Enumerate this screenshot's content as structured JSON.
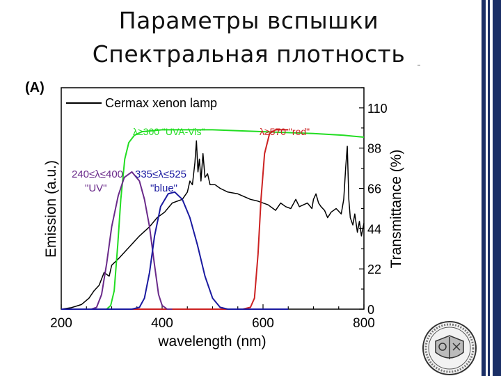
{
  "slide": {
    "title_line1": "Параметры вспышки",
    "title_line2": "Спектральная плотность"
  },
  "colors": {
    "lamp": "#000000",
    "uvavis": "#22dd22",
    "red": "#cc2222",
    "uv": "#6a2a8a",
    "blue": "#1a1aa0",
    "edge": "#1b2f66"
  },
  "chart_data": {
    "type": "line",
    "panel_label": "(A)",
    "xlabel": "wavelength (nm)",
    "ylabel_left": "Emission (a.u.)",
    "ylabel_right": "Transmittance (%)",
    "xlim": [
      200,
      800
    ],
    "ylim_right": [
      0,
      121
    ],
    "x_ticks": [
      200,
      400,
      600,
      800
    ],
    "y_right_ticks": [
      0,
      22,
      44,
      66,
      88,
      110
    ],
    "x_tick_labels": [
      "200",
      "400",
      "600",
      "800"
    ],
    "y_right_tick_labels": [
      "0",
      "22",
      "44",
      "66",
      "88",
      "110"
    ],
    "legend": {
      "lamp": "Cermax xenon lamp",
      "uvavis": "λ≥300 \"UVA-Vis\"",
      "red": "λ≥570 \"red\"",
      "uv_line1": "240≤λ≤400",
      "uv_line2": "\"UV\"",
      "blue_line1": "335≤λ≤525",
      "blue_line2": "\"blue\""
    },
    "series": [
      {
        "name": "Cermax xenon lamp",
        "color": "#000000",
        "axis": "right",
        "points": [
          [
            200,
            0
          ],
          [
            220,
            0.8
          ],
          [
            240,
            2.5
          ],
          [
            255,
            6
          ],
          [
            265,
            10
          ],
          [
            275,
            13
          ],
          [
            285,
            20
          ],
          [
            295,
            18
          ],
          [
            300,
            24
          ],
          [
            315,
            28
          ],
          [
            335,
            34
          ],
          [
            355,
            40
          ],
          [
            375,
            45
          ],
          [
            390,
            50
          ],
          [
            405,
            53
          ],
          [
            420,
            58
          ],
          [
            440,
            60
          ],
          [
            450,
            64
          ],
          [
            455,
            70
          ],
          [
            460,
            68
          ],
          [
            465,
            80
          ],
          [
            468,
            92
          ],
          [
            471,
            75
          ],
          [
            474,
            82
          ],
          [
            477,
            70
          ],
          [
            481,
            85
          ],
          [
            485,
            72
          ],
          [
            490,
            74
          ],
          [
            495,
            68
          ],
          [
            505,
            68
          ],
          [
            515,
            66
          ],
          [
            530,
            64
          ],
          [
            550,
            63
          ],
          [
            575,
            60
          ],
          [
            590,
            59
          ],
          [
            610,
            57
          ],
          [
            625,
            54
          ],
          [
            635,
            58
          ],
          [
            645,
            56
          ],
          [
            655,
            55
          ],
          [
            665,
            60
          ],
          [
            672,
            56
          ],
          [
            680,
            57
          ],
          [
            688,
            58
          ],
          [
            697,
            55
          ],
          [
            700,
            60
          ],
          [
            705,
            63
          ],
          [
            710,
            58
          ],
          [
            715,
            56
          ],
          [
            722,
            54
          ],
          [
            728,
            50
          ],
          [
            735,
            53
          ],
          [
            745,
            55
          ],
          [
            755,
            52
          ],
          [
            760,
            60
          ],
          [
            764,
            78
          ],
          [
            767,
            89
          ],
          [
            770,
            60
          ],
          [
            773,
            50
          ],
          [
            778,
            46
          ],
          [
            782,
            52
          ],
          [
            787,
            42
          ],
          [
            791,
            48
          ],
          [
            795,
            40
          ],
          [
            798,
            44
          ],
          [
            800,
            47
          ]
        ]
      },
      {
        "name": "λ≥300 \"UVA-Vis\"",
        "color": "#22dd22",
        "axis": "right",
        "points": [
          [
            200,
            0
          ],
          [
            290,
            0
          ],
          [
            298,
            2
          ],
          [
            305,
            10
          ],
          [
            312,
            35
          ],
          [
            318,
            60
          ],
          [
            326,
            82
          ],
          [
            334,
            91
          ],
          [
            345,
            95
          ],
          [
            360,
            97
          ],
          [
            400,
            98
          ],
          [
            500,
            98
          ],
          [
            600,
            97
          ],
          [
            700,
            96
          ],
          [
            760,
            95
          ],
          [
            800,
            94
          ]
        ]
      },
      {
        "name": "λ≥570 \"red\"",
        "color": "#cc2222",
        "axis": "right",
        "points": [
          [
            200,
            0
          ],
          [
            560,
            0
          ],
          [
            575,
            1
          ],
          [
            583,
            6
          ],
          [
            590,
            30
          ],
          [
            596,
            60
          ],
          [
            603,
            85
          ],
          [
            613,
            96
          ],
          [
            625,
            98
          ],
          [
            640,
            98
          ],
          [
            650,
            98
          ]
        ]
      },
      {
        "name": "240≤λ≤400 \"UV\"",
        "color": "#6a2a8a",
        "axis": "right",
        "points": [
          [
            200,
            0
          ],
          [
            260,
            0
          ],
          [
            270,
            1
          ],
          [
            280,
            8
          ],
          [
            290,
            25
          ],
          [
            300,
            45
          ],
          [
            313,
            62
          ],
          [
            325,
            72
          ],
          [
            340,
            75
          ],
          [
            355,
            70
          ],
          [
            365,
            60
          ],
          [
            375,
            45
          ],
          [
            385,
            24
          ],
          [
            393,
            8
          ],
          [
            400,
            2
          ],
          [
            410,
            0
          ],
          [
            420,
            0
          ]
        ]
      },
      {
        "name": "335≤λ≤525 \"blue\"",
        "color": "#1a1aa0",
        "axis": "right",
        "points": [
          [
            200,
            0
          ],
          [
            340,
            0
          ],
          [
            355,
            1
          ],
          [
            365,
            6
          ],
          [
            375,
            20
          ],
          [
            385,
            40
          ],
          [
            397,
            56
          ],
          [
            412,
            63
          ],
          [
            425,
            64
          ],
          [
            440,
            60
          ],
          [
            455,
            50
          ],
          [
            470,
            35
          ],
          [
            485,
            18
          ],
          [
            500,
            6
          ],
          [
            515,
            1
          ],
          [
            530,
            0
          ],
          [
            650,
            0
          ]
        ]
      }
    ]
  }
}
